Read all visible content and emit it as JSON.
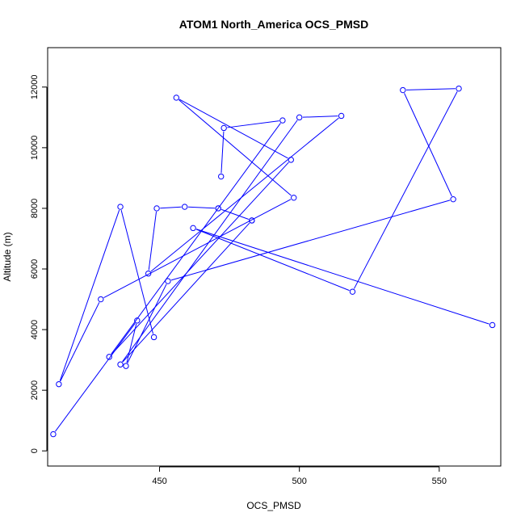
{
  "chart_data": {
    "type": "line",
    "title": "ATOM1 North_America OCS_PMSD",
    "xlabel": "OCS_PMSD",
    "ylabel": "Altitude (m)",
    "xlim": [
      410,
      572
    ],
    "ylim": [
      -500,
      13300
    ],
    "xticks": [
      450,
      500,
      550
    ],
    "yticks": [
      0,
      2000,
      4000,
      6000,
      8000,
      10000,
      12000
    ],
    "grid": false,
    "legend": "none",
    "series": [
      {
        "color": "#0000ff",
        "marker": "open-circle",
        "x": [
          412,
          442,
          438,
          453,
          555,
          537,
          557,
          519,
          462,
          569
        ],
        "y": [
          550,
          4300,
          2800,
          5600,
          8300,
          11900,
          11950,
          5250,
          7350,
          4150
        ]
      },
      {
        "color": "#0000ff",
        "marker": "open-circle",
        "x": [
          448,
          436,
          414,
          429,
          498,
          456,
          497,
          432,
          494,
          473,
          472
        ],
        "y": [
          3750,
          8050,
          2200,
          5000,
          8350,
          11650,
          9600,
          3100,
          10900,
          10650,
          9050
        ]
      },
      {
        "color": "#0000ff",
        "marker": "open-circle",
        "x": [
          483,
          471,
          471,
          459,
          449,
          446,
          515,
          500,
          436,
          483
        ],
        "y": [
          7600,
          8000,
          8000,
          8050,
          8000,
          5850,
          11050,
          11000,
          2850,
          7600
        ]
      }
    ]
  }
}
